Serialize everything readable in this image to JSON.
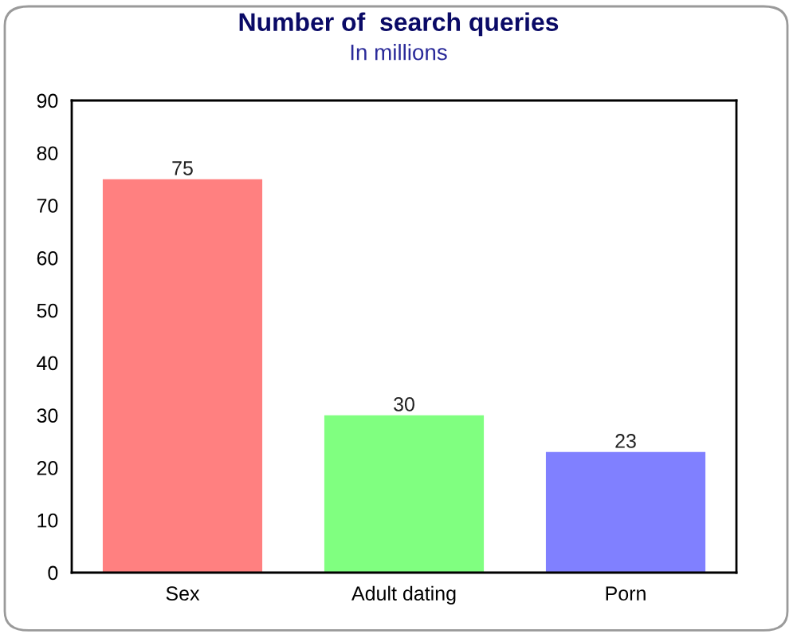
{
  "chart_data": {
    "type": "bar",
    "title": "Number of  search queries",
    "subtitle": "In millions",
    "categories": [
      "Sex",
      "Adult dating",
      "Porn"
    ],
    "values": [
      75,
      30,
      23
    ],
    "colors": [
      "#ff8080",
      "#80ff80",
      "#8080ff"
    ],
    "ylim": [
      0,
      90
    ],
    "yticks": [
      0,
      10,
      20,
      30,
      40,
      50,
      60,
      70,
      80,
      90
    ],
    "data_labels": true
  }
}
